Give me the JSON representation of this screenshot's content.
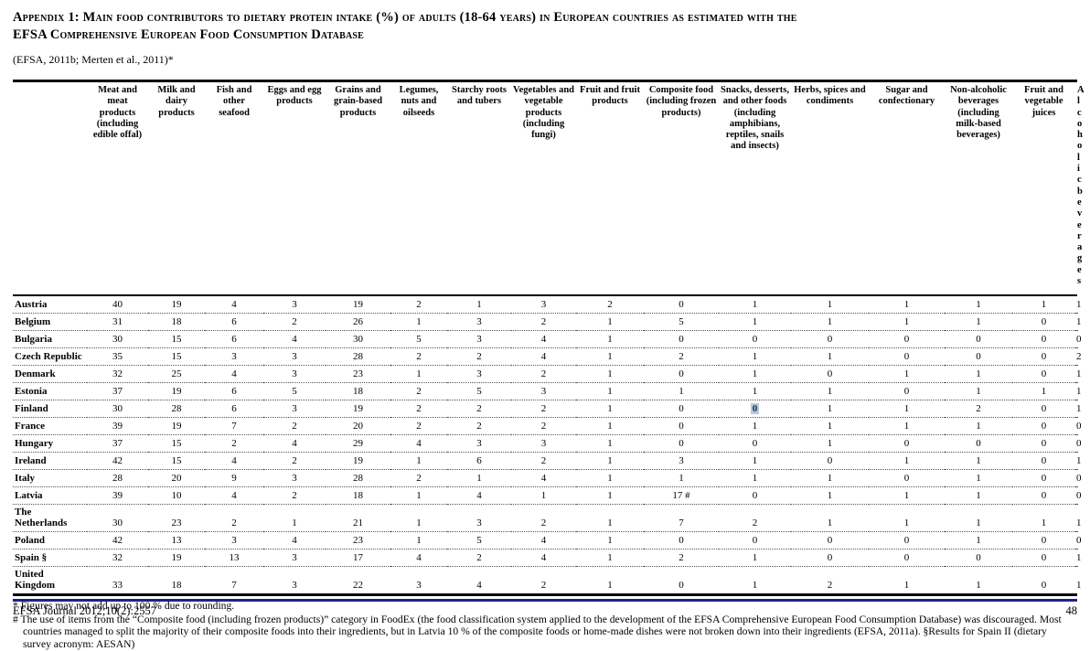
{
  "document": {
    "title_line1": "Appendix 1: Main food contributors to dietary protein intake (%) of adults (18-64 years) in European countries as estimated with the",
    "title_line2": "EFSA Comprehensive European Food Consumption Database",
    "citation": "(EFSA, 2011b; Merten et al., 2011)*"
  },
  "table": {
    "columns": [
      "Meat and meat products (including edible offal)",
      "Milk and dairy products",
      "Fish and other seafood",
      "Eggs and egg products",
      "Grains and grain-based products",
      "Legumes, nuts and oilseeds",
      "Starchy roots and tubers",
      "Vegetables and vegetable products (including fungi)",
      "Fruit and fruit products",
      "Composite food (including frozen products)",
      "Snacks, desserts, and other foods (including amphibians, reptiles, snails and insects)",
      "Herbs, spices and condiments",
      "Sugar and confectionary",
      "Non-alcoholic beverages (including milk-based beverages)",
      "Fruit and vegetable juices",
      "Alcoholic beverages"
    ],
    "rows": [
      {
        "country": "Austria",
        "values": [
          40,
          19,
          4,
          3,
          19,
          2,
          1,
          3,
          2,
          0,
          1,
          1,
          1,
          1,
          1,
          1
        ]
      },
      {
        "country": "Belgium",
        "values": [
          31,
          18,
          6,
          2,
          26,
          1,
          3,
          2,
          1,
          5,
          1,
          1,
          1,
          1,
          0,
          1
        ]
      },
      {
        "country": "Bulgaria",
        "values": [
          30,
          15,
          6,
          4,
          30,
          5,
          3,
          4,
          1,
          0,
          0,
          0,
          0,
          0,
          0,
          0
        ]
      },
      {
        "country": "Czech Republic",
        "values": [
          35,
          15,
          3,
          3,
          28,
          2,
          2,
          4,
          1,
          2,
          1,
          1,
          0,
          0,
          0,
          2
        ]
      },
      {
        "country": "Denmark",
        "values": [
          32,
          25,
          4,
          3,
          23,
          1,
          3,
          2,
          1,
          0,
          1,
          0,
          1,
          1,
          0,
          1
        ]
      },
      {
        "country": "Estonia",
        "values": [
          37,
          19,
          6,
          5,
          18,
          2,
          5,
          3,
          1,
          1,
          1,
          1,
          0,
          1,
          1,
          1
        ]
      },
      {
        "country": "Finland",
        "values": [
          30,
          28,
          6,
          3,
          19,
          2,
          2,
          2,
          1,
          0,
          0,
          1,
          1,
          2,
          0,
          1
        ]
      },
      {
        "country": "France",
        "values": [
          39,
          19,
          7,
          2,
          20,
          2,
          2,
          2,
          1,
          0,
          1,
          1,
          1,
          1,
          0,
          0
        ]
      },
      {
        "country": "Hungary",
        "values": [
          37,
          15,
          2,
          4,
          29,
          4,
          3,
          3,
          1,
          0,
          0,
          1,
          0,
          0,
          0,
          0
        ]
      },
      {
        "country": "Ireland",
        "values": [
          42,
          15,
          4,
          2,
          19,
          1,
          6,
          2,
          1,
          3,
          1,
          0,
          1,
          1,
          0,
          1
        ]
      },
      {
        "country": "Italy",
        "values": [
          28,
          20,
          9,
          3,
          28,
          2,
          1,
          4,
          1,
          1,
          1,
          1,
          0,
          1,
          0,
          0
        ]
      },
      {
        "country": "Latvia",
        "values": [
          39,
          10,
          4,
          2,
          18,
          1,
          4,
          1,
          1,
          "17 #",
          0,
          1,
          1,
          1,
          0,
          0
        ]
      },
      {
        "country": "The Netherlands",
        "values": [
          30,
          23,
          2,
          1,
          21,
          1,
          3,
          2,
          1,
          7,
          2,
          1,
          1,
          1,
          1,
          1
        ]
      },
      {
        "country": "Poland",
        "values": [
          42,
          13,
          3,
          4,
          23,
          1,
          5,
          4,
          1,
          0,
          0,
          0,
          0,
          1,
          0,
          0
        ]
      },
      {
        "country": "Spain §",
        "values": [
          32,
          19,
          13,
          3,
          17,
          4,
          2,
          4,
          1,
          2,
          1,
          0,
          0,
          0,
          0,
          1
        ]
      },
      {
        "country": "United Kingdom",
        "values": [
          33,
          18,
          7,
          3,
          22,
          3,
          4,
          2,
          1,
          0,
          1,
          2,
          1,
          1,
          0,
          1
        ]
      }
    ],
    "bold_cell": {
      "row": 6,
      "col": 10
    }
  },
  "footnotes": {
    "star": "* Figures may not add up to 100 % due to rounding.",
    "hash": "# The use of items from the “Composite food (including frozen products)” category in FoodEx (the food classification system applied to the development of the EFSA Comprehensive European Food Consumption Database) was discouraged. Most countries managed to split the majority of their composite foods into their ingredients, but in Latvia 10 % of the composite foods or home-made dishes were not broken down into their ingredients (EFSA, 2011a). §Results for Spain II (dietary survey acronym: AESAN)"
  },
  "footer": {
    "journal": "EFSA Journal 2012;10(2):2557",
    "page": "48"
  },
  "colors": {
    "footer_rule": "#1e2289",
    "text": "#000000"
  }
}
